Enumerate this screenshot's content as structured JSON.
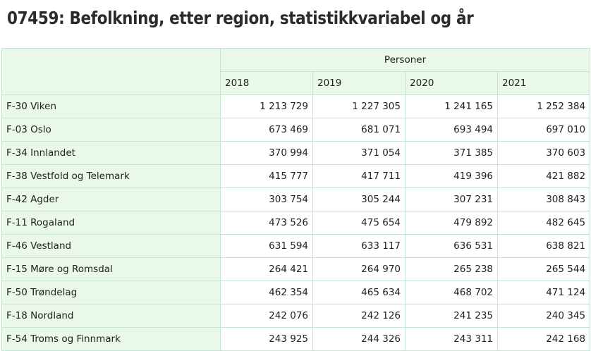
{
  "page": {
    "title": "07459: Befolkning, etter region, statistikkvariabel og år"
  },
  "table": {
    "measure_label": "Personer",
    "years": [
      "2018",
      "2019",
      "2020",
      "2021"
    ],
    "rows": [
      {
        "region": "F-30 Viken",
        "values": [
          "1 213 729",
          "1 227 305",
          "1 241 165",
          "1 252 384"
        ]
      },
      {
        "region": "F-03 Oslo",
        "values": [
          "673 469",
          "681 071",
          "693 494",
          "697 010"
        ]
      },
      {
        "region": "F-34 Innlandet",
        "values": [
          "370 994",
          "371 054",
          "371 385",
          "370 603"
        ]
      },
      {
        "region": "F-38 Vestfold og Telemark",
        "values": [
          "415 777",
          "417 711",
          "419 396",
          "421 882"
        ]
      },
      {
        "region": "F-42 Agder",
        "values": [
          "303 754",
          "305 244",
          "307 231",
          "308 843"
        ]
      },
      {
        "region": "F-11 Rogaland",
        "values": [
          "473 526",
          "475 654",
          "479 892",
          "482 645"
        ]
      },
      {
        "region": "F-46 Vestland",
        "values": [
          "631 594",
          "633 117",
          "636 531",
          "638 821"
        ]
      },
      {
        "region": "F-15 Møre og Romsdal",
        "values": [
          "264 421",
          "264 970",
          "265 238",
          "265 544"
        ]
      },
      {
        "region": "F-50 Trøndelag",
        "values": [
          "462 354",
          "465 634",
          "468 702",
          "471 124"
        ]
      },
      {
        "region": "F-18 Nordland",
        "values": [
          "242 076",
          "242 126",
          "241 235",
          "240 345"
        ]
      },
      {
        "region": "F-54 Troms og Finnmark",
        "values": [
          "243 925",
          "244 326",
          "243 311",
          "242 168"
        ]
      }
    ]
  }
}
